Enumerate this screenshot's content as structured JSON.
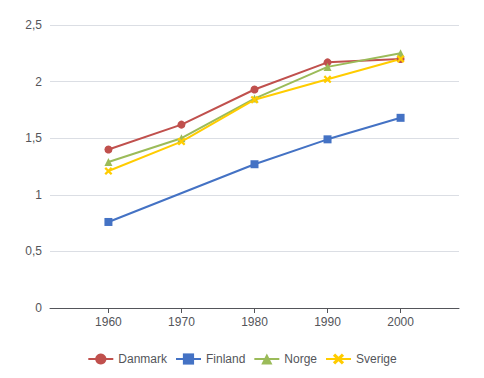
{
  "chart_data": {
    "type": "line",
    "series": [
      {
        "name": "Danmark",
        "color": "#C0504D",
        "marker": "circle",
        "x": [
          1960,
          1970,
          1980,
          1990,
          2000
        ],
        "values": [
          1.4,
          1.62,
          1.93,
          2.17,
          2.2
        ]
      },
      {
        "name": "Finland",
        "color": "#4472C4",
        "marker": "square",
        "x": [
          1960,
          1980,
          1990,
          2000
        ],
        "values": [
          0.76,
          1.27,
          1.49,
          1.68
        ]
      },
      {
        "name": "Norge",
        "color": "#9BBB59",
        "marker": "triangle",
        "x": [
          1960,
          1970,
          1980,
          1990,
          2000
        ],
        "values": [
          1.29,
          1.5,
          1.85,
          2.13,
          2.25
        ]
      },
      {
        "name": "Sverige",
        "color": "#FFCC00",
        "marker": "x",
        "x": [
          1960,
          1970,
          1980,
          1990,
          2000
        ],
        "values": [
          1.21,
          1.47,
          1.84,
          2.02,
          2.2
        ]
      }
    ],
    "xlim": [
      1952,
      2008
    ],
    "xticks": [
      1960,
      1970,
      1980,
      1990,
      2000
    ],
    "ylim": [
      0,
      2.5
    ],
    "yticks": [
      0,
      {
        "value": 0.5,
        "label": "0,5"
      },
      1,
      {
        "value": 1.5,
        "label": "1,5"
      },
      2,
      {
        "value": 2.5,
        "label": "2,5"
      }
    ],
    "grid": "y",
    "legend": "bottom"
  }
}
